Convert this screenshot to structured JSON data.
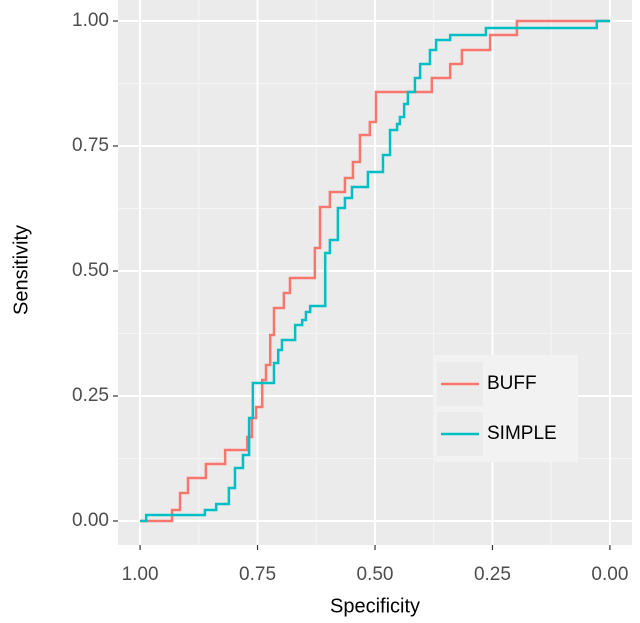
{
  "chart_data": {
    "type": "line",
    "x_label": "Specificity",
    "y_label": "Sensitivity",
    "xlim": [
      1.047,
      -0.047
    ],
    "ylim": [
      -0.048,
      1.042
    ],
    "xticks": [
      {
        "value": 1,
        "label": "1.00"
      },
      {
        "value": 0.75,
        "label": "0.75"
      },
      {
        "value": 0.5,
        "label": "0.50"
      },
      {
        "value": 0.25,
        "label": "0.25"
      },
      {
        "value": 0,
        "label": "0.00"
      }
    ],
    "yticks": [
      {
        "value": 0,
        "label": "0.00"
      },
      {
        "value": 0.25,
        "label": "0.25"
      },
      {
        "value": 0.5,
        "label": "0.50"
      },
      {
        "value": 0.75,
        "label": "0.75"
      },
      {
        "value": 1,
        "label": "1.00"
      }
    ],
    "xminorticks": [
      0.875,
      0.625,
      0.375,
      0.125
    ],
    "yminorticks": [
      0.125,
      0.375,
      0.625,
      0.875
    ],
    "grid": true,
    "legend": "inside-right",
    "series": [
      {
        "name": "BUFF",
        "color": "#F8766D",
        "x": [
          1,
          0.932,
          0.932,
          0.915,
          0.915,
          0.898,
          0.898,
          0.86,
          0.86,
          0.819,
          0.819,
          0.772,
          0.772,
          0.762,
          0.762,
          0.753,
          0.753,
          0.74,
          0.74,
          0.732,
          0.732,
          0.723,
          0.723,
          0.715,
          0.715,
          0.694,
          0.694,
          0.681,
          0.681,
          0.628,
          0.628,
          0.617,
          0.617,
          0.596,
          0.596,
          0.564,
          0.564,
          0.547,
          0.547,
          0.532,
          0.532,
          0.511,
          0.511,
          0.498,
          0.498,
          0.379,
          0.379,
          0.34,
          0.34,
          0.315,
          0.315,
          0.255,
          0.255,
          0.198,
          0.198,
          0
        ],
        "values": [
          0,
          0,
          0.022,
          0.022,
          0.056,
          0.056,
          0.086,
          0.086,
          0.114,
          0.114,
          0.142,
          0.142,
          0.168,
          0.168,
          0.206,
          0.206,
          0.228,
          0.228,
          0.282,
          0.282,
          0.312,
          0.312,
          0.372,
          0.372,
          0.426,
          0.426,
          0.456,
          0.456,
          0.486,
          0.486,
          0.546,
          0.546,
          0.628,
          0.628,
          0.658,
          0.658,
          0.686,
          0.686,
          0.718,
          0.718,
          0.772,
          0.772,
          0.798,
          0.798,
          0.858,
          0.858,
          0.886,
          0.886,
          0.914,
          0.914,
          0.942,
          0.942,
          0.972,
          0.972,
          1,
          1
        ]
      },
      {
        "name": "SIMPLE",
        "color": "#00BFC4",
        "x": [
          1,
          0.987,
          0.987,
          0.862,
          0.862,
          0.838,
          0.838,
          0.811,
          0.811,
          0.798,
          0.798,
          0.781,
          0.781,
          0.768,
          0.768,
          0.76,
          0.76,
          0.715,
          0.715,
          0.706,
          0.706,
          0.698,
          0.698,
          0.67,
          0.67,
          0.655,
          0.655,
          0.647,
          0.647,
          0.638,
          0.638,
          0.606,
          0.606,
          0.596,
          0.596,
          0.579,
          0.579,
          0.564,
          0.564,
          0.549,
          0.549,
          0.515,
          0.515,
          0.483,
          0.483,
          0.468,
          0.468,
          0.453,
          0.453,
          0.447,
          0.447,
          0.438,
          0.438,
          0.43,
          0.43,
          0.415,
          0.415,
          0.404,
          0.404,
          0.383,
          0.383,
          0.37,
          0.37,
          0.34,
          0.34,
          0.264,
          0.264,
          0.028,
          0.028,
          0
        ],
        "values": [
          0,
          0,
          0.012,
          0.012,
          0.022,
          0.022,
          0.034,
          0.034,
          0.066,
          0.066,
          0.106,
          0.106,
          0.132,
          0.132,
          0.206,
          0.206,
          0.276,
          0.276,
          0.316,
          0.316,
          0.342,
          0.342,
          0.362,
          0.362,
          0.392,
          0.392,
          0.402,
          0.402,
          0.418,
          0.418,
          0.43,
          0.43,
          0.536,
          0.536,
          0.562,
          0.562,
          0.626,
          0.626,
          0.646,
          0.646,
          0.668,
          0.668,
          0.698,
          0.698,
          0.732,
          0.732,
          0.782,
          0.782,
          0.794,
          0.794,
          0.808,
          0.808,
          0.834,
          0.834,
          0.858,
          0.858,
          0.886,
          0.886,
          0.914,
          0.914,
          0.942,
          0.942,
          0.962,
          0.962,
          0.972,
          0.972,
          0.986,
          0.986,
          1,
          1
        ]
      }
    ]
  }
}
